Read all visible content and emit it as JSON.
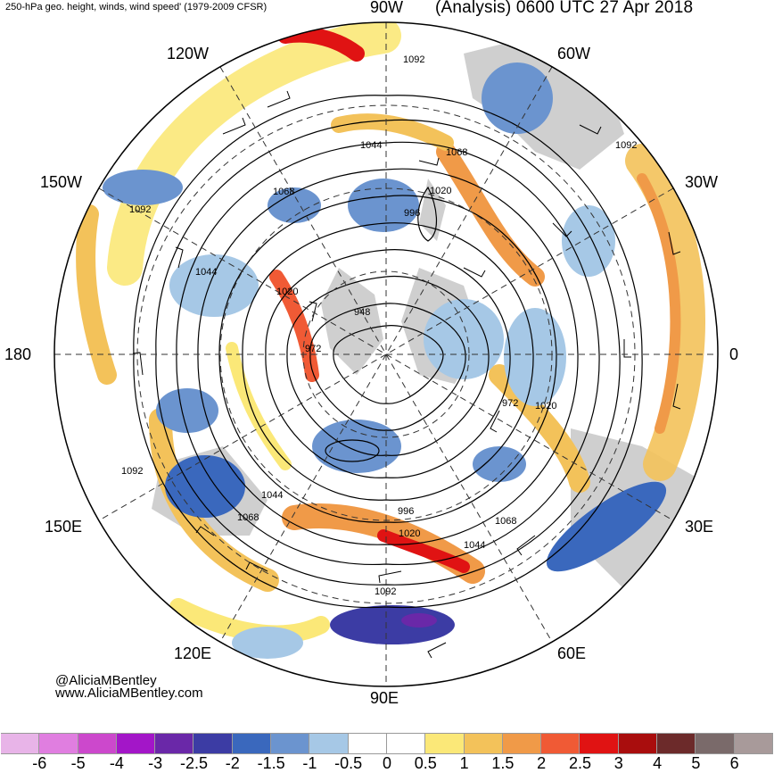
{
  "header": {
    "left_title": "250-hPa geo. height, winds, wind speed' (1979-2009 CFSR)",
    "right_title": "(Analysis) 0600 UTC 27 Apr 2018"
  },
  "longitude_labels": {
    "top": "90W",
    "upper_right": "60W",
    "right_upper": "30W",
    "right": "0",
    "right_lower": "30E",
    "lower_right": "60E",
    "bottom": "90E",
    "lower_left": "120E",
    "left_lower": "150E",
    "left": "180",
    "left_upper": "150W",
    "upper_left": "120W"
  },
  "contour_labels": [
    "1092",
    "1092",
    "1092",
    "1092",
    "1092",
    "1068",
    "1068",
    "1068",
    "1068",
    "1044",
    "1044",
    "1044",
    "1044",
    "1020",
    "1020",
    "1020",
    "1020",
    "996",
    "996",
    "972",
    "972",
    "948"
  ],
  "credit": {
    "handle": "@AliciaMBentley",
    "website": "www.AliciaMBentley.com"
  },
  "colorbar": {
    "colors": [
      "#e8b4e8",
      "#e07ee0",
      "#cc48cc",
      "#a316c8",
      "#6a28a8",
      "#3c3ca4",
      "#3a68bd",
      "#6b94cf",
      "#a6c8e6",
      "#ffffff",
      "#ffffff",
      "#fbe878",
      "#f3c25a",
      "#f09a48",
      "#f05a35",
      "#e01313",
      "#a90d0d",
      "#6c2a2a",
      "#7a6a6a",
      "#a89a9a"
    ],
    "ticks": [
      "-6",
      "-5",
      "-4",
      "-3",
      "-2.5",
      "-2",
      "-1.5",
      "-1",
      "-0.5",
      "0",
      "0.5",
      "1",
      "1.5",
      "2",
      "2.5",
      "3",
      "4",
      "5",
      "6"
    ]
  },
  "colors": {
    "land": "#c8c8c8",
    "contour": "#000000",
    "coastline": "#555555"
  }
}
